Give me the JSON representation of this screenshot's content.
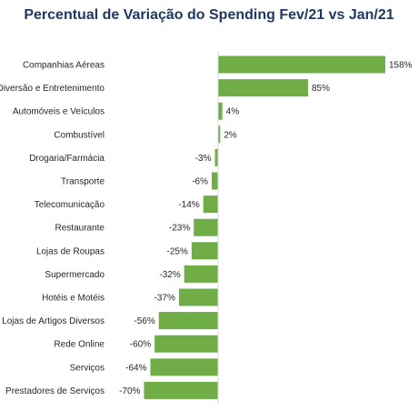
{
  "chart_data": {
    "type": "bar",
    "orientation": "horizontal",
    "title": "Percentual de Variação do Spending  Fev/21 vs Jan/21",
    "bar_color": "#70ad47",
    "axis_color": "#d9d9d9",
    "title_color": "#1f3864",
    "legend": "none",
    "grid": false,
    "xlim": [
      -70,
      158
    ],
    "categories": [
      "Companhias Aéreas",
      "Diversão e Entretenimento",
      "Automóveis e Veículos",
      "Combustível",
      "Drogaria/Farmácia",
      "Transporte",
      "Telecomunicação",
      "Restaurante",
      "Lojas de Roupas",
      "Supermercado",
      "Hotéis e Motéis",
      "Lojas de Artigos Diversos",
      "Rede Online",
      "Serviços",
      "Prestadores de Serviços"
    ],
    "values": [
      158,
      85,
      4,
      2,
      -3,
      -6,
      -14,
      -23,
      -25,
      -32,
      -37,
      -56,
      -60,
      -64,
      -70
    ],
    "value_labels": [
      "158%",
      "85%",
      "4%",
      "2%",
      "-3%",
      "-6%",
      "-14%",
      "-23%",
      "-25%",
      "-32%",
      "-37%",
      "-56%",
      "-60%",
      "-64%",
      "-70%"
    ]
  }
}
